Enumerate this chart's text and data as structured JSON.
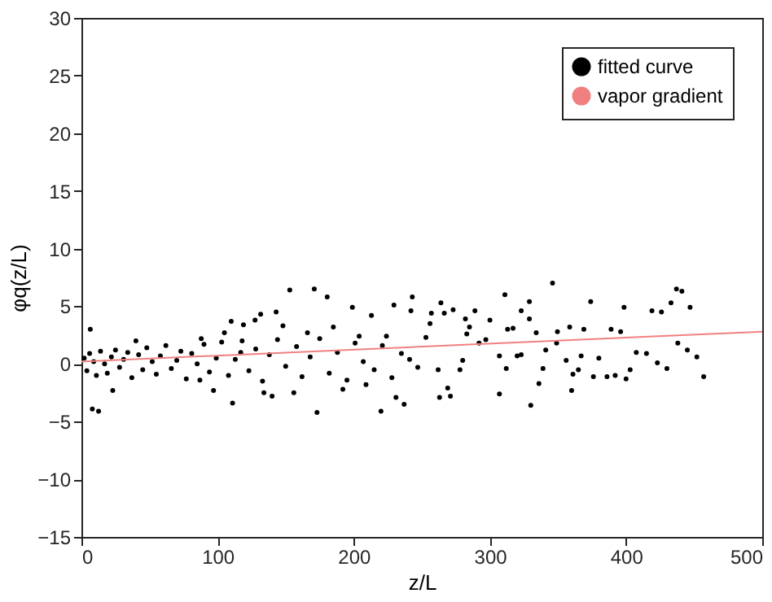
{
  "chart_data": {
    "type": "scatter",
    "xlabel": "z/L",
    "ylabel": "φq(z/L)",
    "xlim": [
      0,
      500
    ],
    "ylim": [
      -15,
      30
    ],
    "xticks": [
      0,
      100,
      200,
      300,
      400,
      500
    ],
    "yticks": [
      -15,
      -10,
      -5,
      0,
      5,
      10,
      15,
      20,
      25,
      30
    ],
    "grid": false,
    "legend": "top right",
    "series": [
      {
        "name": "fitted curve",
        "color": "#000000",
        "marker": "circle",
        "x": [
          6.5,
          8,
          12.6,
          40,
          23,
          153,
          171,
          180.5,
          143,
          111,
          173,
          110,
          119,
          127.5,
          131.6,
          346,
          437,
          441,
          311,
          374,
          398.5,
          419,
          426,
          433,
          447,
          457,
          452,
          445,
          438,
          430,
          423,
          415,
          407.5,
          403,
          400,
          396,
          389,
          392,
          386,
          376,
          380,
          369,
          367,
          365,
          361,
          360,
          356,
          358.6,
          349.6,
          349,
          341,
          339,
          336,
          330,
          334,
          329,
          329,
          323,
          323,
          320,
          317,
          313,
          312,
          307,
          307,
          300,
          297,
          292,
          289,
          285,
          282,
          283,
          280,
          278,
          273,
          271,
          269,
          263,
          266.5,
          264,
          262,
          257,
          256,
          253,
          243,
          242,
          88,
          97,
          87,
          105,
          117,
          134,
          140,
          156,
          148,
          166,
          185,
          199,
          204,
          213,
          224,
          229.5,
          231,
          237,
          220,
          192,
          209,
          2,
          4,
          6,
          9,
          11,
          14,
          17,
          19,
          22,
          25,
          28,
          31,
          34,
          37,
          42,
          45,
          48,
          52,
          55,
          58,
          62,
          66,
          70,
          73,
          77,
          81,
          85,
          90,
          94,
          99,
          103,
          108,
          113,
          118,
          123,
          128,
          133,
          138,
          144,
          150,
          158,
          162,
          168,
          175,
          182,
          188,
          195,
          201,
          207,
          215,
          221,
          228,
          235,
          241,
          247
        ],
        "values": [
          3.0,
          -3.9,
          -4.1,
          2.0,
          -2.3,
          6.4,
          6.5,
          5.8,
          4.5,
          -3.4,
          -4.2,
          3.7,
          3.4,
          3.8,
          4.3,
          7.0,
          6.5,
          6.3,
          6.0,
          5.4,
          4.9,
          4.6,
          4.5,
          5.3,
          4.9,
          -1.1,
          0.6,
          1.2,
          1.8,
          -0.4,
          0.1,
          0.9,
          1.0,
          -0.5,
          -1.3,
          2.8,
          3.0,
          -1.0,
          -1.1,
          -1.1,
          0.5,
          3.0,
          0.7,
          -0.5,
          -0.9,
          -2.3,
          0.3,
          3.2,
          2.8,
          1.8,
          1.2,
          -0.4,
          -1.7,
          -3.6,
          2.7,
          3.9,
          5.4,
          4.6,
          0.8,
          0.7,
          3.1,
          3.0,
          -0.4,
          -2.6,
          0.7,
          3.8,
          2.1,
          1.8,
          4.6,
          3.2,
          3.9,
          2.6,
          0.3,
          -0.5,
          4.7,
          -2.8,
          -2.1,
          -2.9,
          4.4,
          5.3,
          -0.5,
          4.4,
          3.5,
          2.3,
          5.8,
          4.6,
          2.2,
          -2.3,
          -1.4,
          2.7,
          1.0,
          -2.5,
          -2.8,
          -2.5,
          3.3,
          2.7,
          3.2,
          4.9,
          2.4,
          4.2,
          2.4,
          5.1,
          -2.9,
          -3.5,
          -4.1,
          -2.2,
          -1.8,
          0.5,
          -0.6,
          0.9,
          0.2,
          -1.0,
          1.1,
          0.0,
          -0.8,
          0.6,
          1.2,
          -0.3,
          0.4,
          1.0,
          -1.2,
          0.8,
          -0.5,
          1.4,
          0.2,
          -0.9,
          0.7,
          1.6,
          -0.4,
          0.3,
          1.1,
          -1.3,
          0.9,
          0.0,
          1.7,
          -0.7,
          0.5,
          1.9,
          -1.0,
          0.4,
          2.0,
          -0.6,
          1.3,
          -1.5,
          0.8,
          2.1,
          -0.2,
          1.5,
          -1.1,
          0.6,
          2.2,
          -0.8,
          1.0,
          -1.4,
          1.8,
          0.2,
          -0.5,
          1.6,
          -1.2,
          0.9,
          0.4,
          -0.3
        ]
      },
      {
        "name": "vapor gradient",
        "color": "#f08080",
        "type": "line",
        "line_style": "solid",
        "x": [
          0,
          500
        ],
        "values": [
          0.2,
          2.8
        ]
      }
    ]
  }
}
